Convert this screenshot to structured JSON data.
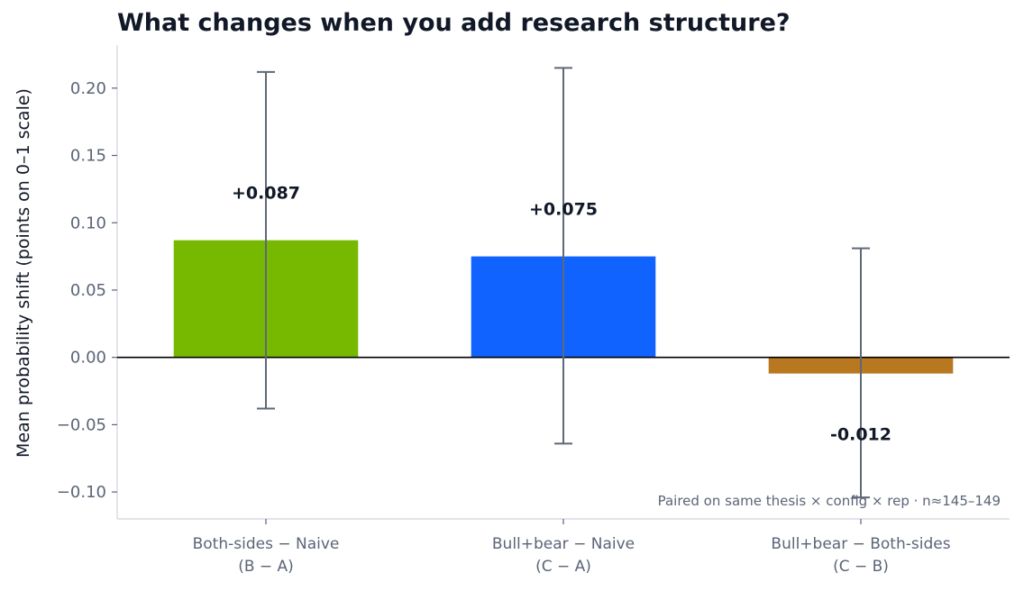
{
  "chart_data": {
    "type": "bar",
    "title": "What changes when you add research structure?",
    "ylabel": "Mean probability shift (points on 0–1 scale)",
    "xlabel": "",
    "ylim": [
      -0.12,
      0.232
    ],
    "yticks": [
      -0.1,
      -0.05,
      0.0,
      0.05,
      0.1,
      0.15,
      0.2
    ],
    "ytick_labels": [
      "−0.10",
      "−0.05",
      "0.00",
      "0.05",
      "0.10",
      "0.15",
      "0.20"
    ],
    "categories": [
      {
        "line1": "Both-sides − Naive",
        "line2": "(B − A)"
      },
      {
        "line1": "Bull+bear − Naive",
        "line2": "(C − A)"
      },
      {
        "line1": "Bull+bear − Both-sides",
        "line2": "(C − B)"
      }
    ],
    "values": [
      0.087,
      0.075,
      -0.012
    ],
    "ci_low": [
      -0.038,
      -0.064,
      -0.104
    ],
    "ci_high": [
      0.212,
      0.215,
      0.081
    ],
    "data_labels": [
      "+0.087",
      "+0.075",
      "-0.012"
    ],
    "colors": [
      "#76b900",
      "#1163ff",
      "#b87820"
    ],
    "errorbar_color": "#5f6878",
    "zero_line": true,
    "grid": false,
    "annotation": "Paired on same thesis × config × rep · n≈145–149"
  }
}
